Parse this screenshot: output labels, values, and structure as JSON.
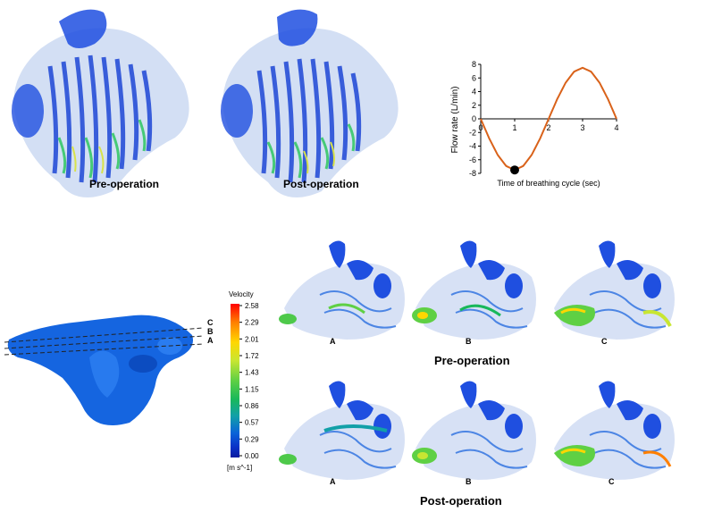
{
  "panels": {
    "top_pre_label": "Pre-operation",
    "top_post_label": "Post-operation",
    "bottom_pre_label": "Pre-operation",
    "bottom_post_label": "Post-operation"
  },
  "sections": {
    "plane_labels": [
      "C",
      "B",
      "A"
    ],
    "column_labels": [
      "A",
      "B",
      "C"
    ]
  },
  "colorbar": {
    "title": "Velocity",
    "unit": "[m s^-1]",
    "ticks": [
      "2.58",
      "2.29",
      "2.01",
      "1.72",
      "1.43",
      "1.15",
      "0.86",
      "0.57",
      "0.29",
      "0.00"
    ],
    "colors": [
      "#ff0000",
      "#ff7f00",
      "#ffd700",
      "#c8e632",
      "#5fd044",
      "#19b85a",
      "#12a0a8",
      "#0a64d8",
      "#0a32c8",
      "#081aa0"
    ]
  },
  "chart_data": {
    "type": "line",
    "title": "",
    "xlabel": "Time of breathing cycle (sec)",
    "ylabel": "Flow rate (L/min)",
    "xlim": [
      0,
      4
    ],
    "ylim": [
      -8,
      8
    ],
    "xticks": [
      "0",
      "1",
      "2",
      "3",
      "4"
    ],
    "yticks": [
      "8",
      "6",
      "4",
      "2",
      "0",
      "-2",
      "-4",
      "-6",
      "-8"
    ],
    "series": [
      {
        "name": "",
        "color": "#d9621a",
        "x": [
          0,
          0.25,
          0.5,
          0.75,
          1.0,
          1.25,
          1.5,
          1.75,
          2.0,
          2.25,
          2.5,
          2.75,
          3.0,
          3.25,
          3.5,
          3.75,
          4.0
        ],
        "y": [
          0,
          -2.87,
          -5.3,
          -6.93,
          -7.5,
          -6.93,
          -5.3,
          -2.87,
          0,
          2.87,
          5.3,
          6.93,
          7.5,
          6.93,
          5.3,
          2.87,
          0
        ]
      }
    ],
    "marker": {
      "x": 1.0,
      "y": -7.5,
      "color": "#000000"
    }
  }
}
